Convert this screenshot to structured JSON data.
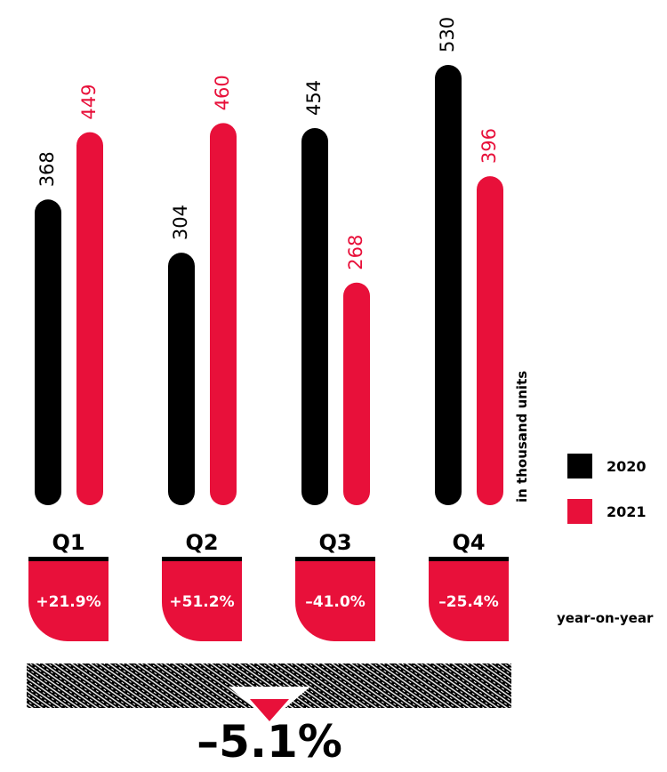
{
  "chart_data": {
    "type": "bar",
    "categories": [
      "Q1",
      "Q2",
      "Q3",
      "Q4"
    ],
    "series": [
      {
        "name": "2020",
        "values": [
          368,
          304,
          454,
          530
        ],
        "color": "#000000"
      },
      {
        "name": "2021",
        "values": [
          449,
          460,
          268,
          396
        ],
        "color": "#e8103a"
      }
    ],
    "ylabel": "in thousand units",
    "ylim": [
      0,
      530
    ],
    "grid": false,
    "legend_position": "right",
    "changes": [
      "+21.9%",
      "+51.2%",
      "–41.0%",
      "–25.4%"
    ],
    "change_label": "year-on-year",
    "total_change": "–5.1%",
    "accent_color": "#e8103a"
  }
}
